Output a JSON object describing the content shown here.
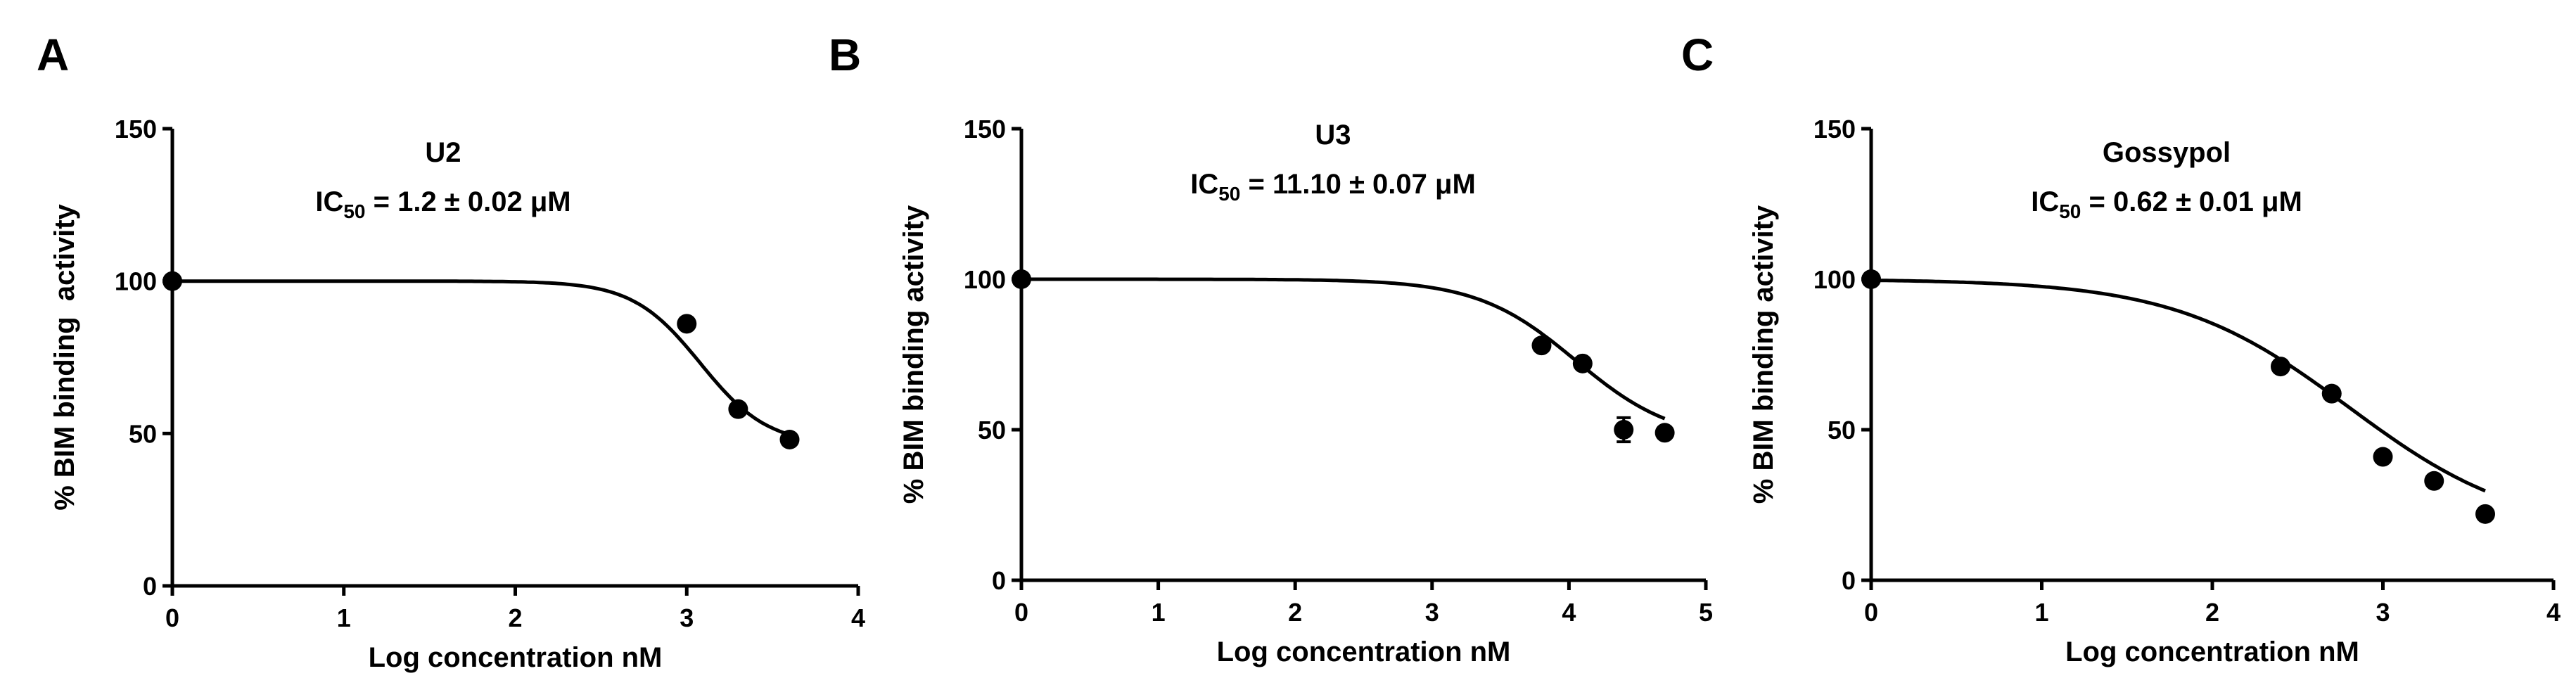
{
  "chart_data": [
    {
      "type": "scatter",
      "panel_label": "A",
      "compound": "U2",
      "ic50_prefix": "IC",
      "ic50_subscript": "50",
      "ic50_value": " = 1.2 ± 0.02 μM",
      "xlabel": "Log concentration nM",
      "ylabel": "% BIM binding  activity",
      "xlim": [
        0,
        4
      ],
      "ylim": [
        0,
        150
      ],
      "xticks": [
        0,
        1,
        2,
        3,
        4
      ],
      "yticks": [
        0,
        50,
        100,
        150
      ],
      "x": [
        0,
        3.0,
        3.3,
        3.6
      ],
      "y": [
        100,
        86,
        58,
        48
      ],
      "fit": {
        "top": 100,
        "bottom": 46,
        "logIC50": 3.08,
        "hill": 2.2
      }
    },
    {
      "type": "scatter",
      "panel_label": "B",
      "compound": "U3",
      "ic50_prefix": "IC",
      "ic50_subscript": "50",
      "ic50_value": " = 11.10 ± 0.07 μM",
      "xlabel": "Log concentration nM",
      "ylabel": "% BIM binding activity",
      "xlim": [
        0,
        5
      ],
      "ylim": [
        0,
        150
      ],
      "xticks": [
        0,
        1,
        2,
        3,
        4,
        5
      ],
      "yticks": [
        0,
        50,
        100,
        150
      ],
      "x": [
        0,
        3.8,
        4.1,
        4.4,
        4.7
      ],
      "y": [
        100,
        78,
        72,
        50,
        49
      ],
      "errors": [
        0,
        0,
        0,
        4,
        0
      ],
      "fit": {
        "top": 100,
        "bottom": 46,
        "logIC50": 4.05,
        "hill": 1.2
      }
    },
    {
      "type": "scatter",
      "panel_label": "C",
      "compound": "Gossypol",
      "ic50_prefix": "IC",
      "ic50_subscript": "50",
      "ic50_value": " = 0.62 ± 0.01 μM",
      "xlabel": "Log concentration nM",
      "ylabel": "% BIM binding activity",
      "xlim": [
        0,
        4
      ],
      "ylim": [
        0,
        150
      ],
      "xticks": [
        0,
        1,
        2,
        3,
        4
      ],
      "yticks": [
        0,
        50,
        100,
        150
      ],
      "x": [
        0,
        2.4,
        2.7,
        3.0,
        3.3,
        3.6
      ],
      "y": [
        100,
        71,
        62,
        41,
        33,
        22
      ],
      "fit": {
        "top": 100,
        "bottom": 15,
        "logIC50": 2.8,
        "hill": 0.85
      }
    }
  ]
}
